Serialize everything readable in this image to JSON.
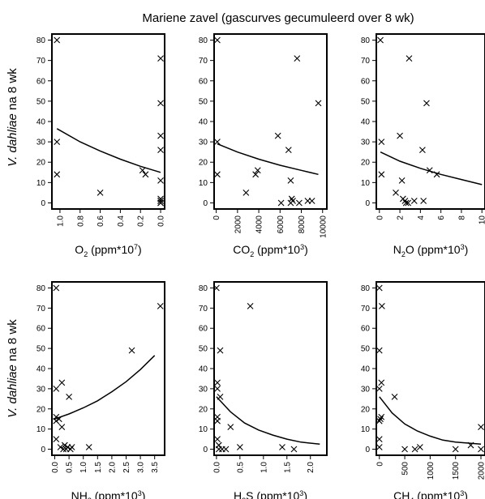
{
  "figure_title": "Mariene zavel (gascurves gecumuleerd over 8 wk)",
  "row_ylabels": {
    "top": {
      "italic": "V. dahliae",
      "rest": " na 8 wk"
    },
    "bottom": {
      "italic": "V. dahliae",
      "rest": " na 8 wk"
    }
  },
  "chart_data": [
    {
      "type": "scatter",
      "xlabel": {
        "main": "O",
        "sub": "2",
        "rest": " (ppm*10",
        "sup": "7",
        "close": ")"
      },
      "ylim": [
        -3,
        83
      ],
      "yticks": [
        0,
        10,
        20,
        30,
        40,
        50,
        60,
        70,
        80
      ],
      "xlim": [
        1.08,
        -0.04
      ],
      "xreversed": true,
      "xticks": [
        1.0,
        0.8,
        0.6,
        0.4,
        0.2,
        0.0
      ],
      "xtick_labels": [
        "1.0",
        "0.8",
        "0.6",
        "0.4",
        "0.2",
        "0.0"
      ],
      "points": [
        [
          1.03,
          80
        ],
        [
          1.03,
          30
        ],
        [
          1.03,
          14
        ],
        [
          0.6,
          5
        ],
        [
          0.18,
          16
        ],
        [
          0.15,
          14
        ],
        [
          0.0,
          71
        ],
        [
          0.0,
          49
        ],
        [
          0.0,
          33
        ],
        [
          0.0,
          26
        ],
        [
          0.0,
          11
        ],
        [
          0.0,
          2
        ],
        [
          0.0,
          1
        ],
        [
          0.0,
          0
        ],
        [
          0.0,
          0
        ],
        [
          0.0,
          1
        ]
      ],
      "fit": [
        [
          1.03,
          36.5
        ],
        [
          0.8,
          30
        ],
        [
          0.6,
          25.5
        ],
        [
          0.4,
          21.5
        ],
        [
          0.2,
          18
        ],
        [
          0.0,
          15
        ]
      ]
    },
    {
      "type": "scatter",
      "xlabel": {
        "main": "CO",
        "sub": "2",
        "rest": " (ppm*10",
        "sup": "3",
        "close": ")"
      },
      "ylim": [
        -3,
        83
      ],
      "yticks": [
        0,
        10,
        20,
        30,
        40,
        50,
        60,
        70,
        80
      ],
      "xlim": [
        -200,
        10400
      ],
      "xreversed": false,
      "xticks": [
        0,
        2000,
        4000,
        6000,
        8000,
        10000
      ],
      "xtick_labels": [
        "0",
        "2000",
        "4000",
        "6000",
        "8000",
        "10000"
      ],
      "points": [
        [
          100,
          80
        ],
        [
          100,
          30
        ],
        [
          100,
          14
        ],
        [
          2800,
          5
        ],
        [
          3700,
          14
        ],
        [
          3900,
          16
        ],
        [
          5800,
          33
        ],
        [
          6100,
          0
        ],
        [
          6800,
          26
        ],
        [
          7000,
          11
        ],
        [
          7000,
          0
        ],
        [
          7100,
          2
        ],
        [
          7200,
          1
        ],
        [
          7600,
          71
        ],
        [
          7800,
          0
        ],
        [
          8600,
          1
        ],
        [
          9000,
          1
        ],
        [
          9600,
          49
        ]
      ],
      "fit": [
        [
          100,
          29
        ],
        [
          2000,
          25
        ],
        [
          4000,
          21.5
        ],
        [
          6000,
          18.5
        ],
        [
          8000,
          16
        ],
        [
          9600,
          14
        ]
      ]
    },
    {
      "type": "scatter",
      "xlabel": {
        "main": "N",
        "sub": "2",
        "rest": "O (ppm*10",
        "sup": "3",
        "close": ")"
      },
      "ylim": [
        -3,
        83
      ],
      "yticks": [
        0,
        10,
        20,
        30,
        40,
        50,
        60,
        70,
        80
      ],
      "xlim": [
        -0.3,
        10.3
      ],
      "xreversed": false,
      "xticks": [
        0,
        2,
        4,
        6,
        8,
        10
      ],
      "xtick_labels": [
        "0",
        "2",
        "4",
        "6",
        "8",
        "10"
      ],
      "points": [
        [
          0.1,
          80
        ],
        [
          0.2,
          30
        ],
        [
          0.2,
          14
        ],
        [
          1.6,
          5
        ],
        [
          2.0,
          33
        ],
        [
          2.2,
          11
        ],
        [
          2.3,
          2
        ],
        [
          2.5,
          1
        ],
        [
          2.6,
          0
        ],
        [
          2.8,
          0
        ],
        [
          2.9,
          71
        ],
        [
          3.4,
          1
        ],
        [
          4.2,
          26
        ],
        [
          4.3,
          1
        ],
        [
          4.6,
          49
        ],
        [
          4.9,
          16
        ],
        [
          5.6,
          14
        ]
      ],
      "fit": [
        [
          0.1,
          25
        ],
        [
          2,
          20.5
        ],
        [
          4,
          17
        ],
        [
          6,
          14
        ],
        [
          8,
          11.5
        ],
        [
          10,
          9
        ]
      ]
    },
    {
      "type": "scatter",
      "xlabel": {
        "main": "NH",
        "sub": "3",
        "rest": " (ppm*10",
        "sup": "3",
        "close": ")"
      },
      "ylim": [
        -3,
        83
      ],
      "yticks": [
        0,
        10,
        20,
        30,
        40,
        50,
        60,
        70,
        80
      ],
      "xlim": [
        -0.1,
        3.85
      ],
      "xreversed": false,
      "xticks": [
        0.0,
        0.5,
        1.0,
        1.5,
        2.0,
        2.5,
        3.0,
        3.5
      ],
      "xtick_labels": [
        "0.0",
        "0.5",
        "1.0",
        "1.5",
        "2.0",
        "2.5",
        "3.0",
        "3.5"
      ],
      "points": [
        [
          0.05,
          80
        ],
        [
          0.05,
          30
        ],
        [
          0.05,
          16
        ],
        [
          0.05,
          14
        ],
        [
          0.05,
          5
        ],
        [
          0.15,
          15
        ],
        [
          0.2,
          1
        ],
        [
          0.25,
          33
        ],
        [
          0.25,
          11
        ],
        [
          0.3,
          0
        ],
        [
          0.35,
          2
        ],
        [
          0.4,
          0
        ],
        [
          0.45,
          1
        ],
        [
          0.5,
          26
        ],
        [
          0.55,
          0
        ],
        [
          0.6,
          1
        ],
        [
          1.2,
          1
        ],
        [
          2.7,
          49
        ],
        [
          3.7,
          71
        ]
      ],
      "fit": [
        [
          0.0,
          15
        ],
        [
          0.5,
          17.5
        ],
        [
          1.0,
          20.5
        ],
        [
          1.5,
          24
        ],
        [
          2.0,
          28.5
        ],
        [
          2.5,
          33.5
        ],
        [
          3.0,
          39.5
        ],
        [
          3.5,
          46.5
        ]
      ]
    },
    {
      "type": "scatter",
      "xlabel": {
        "main": "H",
        "sub": "2",
        "rest": "S (ppm*10",
        "sup": "3",
        "close": ")"
      },
      "ylim": [
        -3,
        83
      ],
      "yticks": [
        0,
        10,
        20,
        30,
        40,
        50,
        60,
        70,
        80
      ],
      "xlim": [
        -0.05,
        2.35
      ],
      "xreversed": false,
      "xticks": [
        0.0,
        0.5,
        1.0,
        1.5,
        2.0
      ],
      "xtick_labels": [
        "0.0",
        "0.5",
        "1.0",
        "1.5",
        "2.0"
      ],
      "points": [
        [
          0.0,
          80
        ],
        [
          0.02,
          33
        ],
        [
          0.02,
          30
        ],
        [
          0.02,
          16
        ],
        [
          0.02,
          14
        ],
        [
          0.02,
          5
        ],
        [
          0.05,
          2
        ],
        [
          0.05,
          0
        ],
        [
          0.08,
          26
        ],
        [
          0.08,
          49
        ],
        [
          0.12,
          0
        ],
        [
          0.2,
          0
        ],
        [
          0.3,
          11
        ],
        [
          0.5,
          1
        ],
        [
          0.72,
          71
        ],
        [
          1.4,
          1
        ],
        [
          1.65,
          0
        ]
      ],
      "fit": [
        [
          0.0,
          26
        ],
        [
          0.3,
          18.5
        ],
        [
          0.6,
          13
        ],
        [
          0.9,
          9.5
        ],
        [
          1.2,
          7
        ],
        [
          1.5,
          5
        ],
        [
          1.8,
          3.5
        ],
        [
          2.2,
          2.5
        ]
      ]
    },
    {
      "type": "scatter",
      "xlabel": {
        "main": "CH",
        "sub": "4",
        "rest": " (ppm*10",
        "sup": "3",
        "close": ")"
      },
      "ylim": [
        -3,
        83
      ],
      "yticks": [
        0,
        10,
        20,
        30,
        40,
        50,
        60,
        70,
        80
      ],
      "xlim": [
        -60,
        2080
      ],
      "xreversed": false,
      "xticks": [
        0,
        500,
        1000,
        1500,
        2000
      ],
      "xtick_labels": [
        "0",
        "500",
        "1000",
        "1500",
        "2000"
      ],
      "points": [
        [
          0,
          80
        ],
        [
          0,
          49
        ],
        [
          0,
          30
        ],
        [
          0,
          14
        ],
        [
          0,
          5
        ],
        [
          0,
          1
        ],
        [
          20,
          15
        ],
        [
          40,
          33
        ],
        [
          40,
          16
        ],
        [
          50,
          71
        ],
        [
          300,
          26
        ],
        [
          500,
          0
        ],
        [
          700,
          0
        ],
        [
          800,
          1
        ],
        [
          1500,
          0
        ],
        [
          1800,
          2
        ],
        [
          2000,
          11
        ],
        [
          2000,
          0
        ]
      ],
      "fit": [
        [
          0,
          26
        ],
        [
          250,
          18
        ],
        [
          500,
          12.5
        ],
        [
          750,
          9
        ],
        [
          1000,
          6.5
        ],
        [
          1250,
          4.5
        ],
        [
          1500,
          3.5
        ],
        [
          2000,
          2.5
        ]
      ]
    }
  ]
}
